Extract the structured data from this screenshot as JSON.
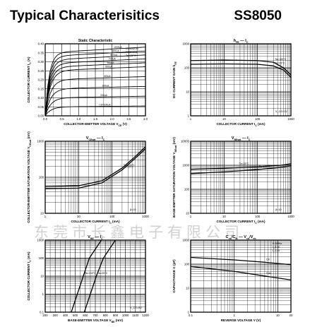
{
  "header": {
    "title": "Typical Characterisitics",
    "part_number": "SS8050"
  },
  "watermark": "东莞市长鑫电子有限公司",
  "chart_data": [
    {
      "type": "line",
      "title": "Static Characteristic",
      "xlabel": "COLLECTOR-EMITTER VOLTAGE",
      "xvar": "V",
      "xsub": "CE",
      "xunit": "(V)",
      "ylabel": "COLLECTOR CURRENT",
      "yvar": "I",
      "ysub": "C",
      "yunit": "(A)",
      "xlim": [
        0,
        3.0
      ],
      "ylim": [
        0,
        0.4
      ],
      "xscale": "linear",
      "yscale": "linear",
      "xticks": [
        "0.0",
        "0.5",
        "1.0",
        "1.5",
        "2.0",
        "2.5",
        "3.0"
      ],
      "yticks": [
        "0.00",
        "0.05",
        "0.10",
        "0.15",
        "0.20",
        "0.25",
        "0.30",
        "0.35",
        "0.40"
      ],
      "annotations": [
        "COMMON",
        "EMITTER",
        "Ta=25°C"
      ],
      "series": [
        {
          "name": "1000uA",
          "sat": 0.35
        },
        {
          "name": "900uA",
          "sat": 0.33
        },
        {
          "name": "800uA",
          "sat": 0.31
        },
        {
          "name": "700uA",
          "sat": 0.29
        },
        {
          "name": "600uA",
          "sat": 0.27
        },
        {
          "name": "500uA",
          "sat": 0.25
        },
        {
          "name": "400uA",
          "sat": 0.2
        },
        {
          "name": "300uA",
          "sat": 0.15
        },
        {
          "name": "200uA",
          "sat": 0.1
        },
        {
          "name": "I_B=100uA",
          "sat": 0.05
        }
      ],
      "label_left": [
        false,
        false,
        false,
        false,
        false,
        false,
        false,
        false,
        false,
        false
      ]
    },
    {
      "type": "line",
      "title_var": "h",
      "title_sub": "FE",
      "title_dash": "— I",
      "title_sub2": "C",
      "xlabel": "COLLECTOR CURRENT",
      "xvar": "I",
      "xsub": "C",
      "xunit": "(mA)",
      "ylabel": "DC CURRENT GAIN",
      "yvar": "h",
      "ysub": "FE",
      "yunit": "",
      "xlim": [
        1,
        1000
      ],
      "ylim": [
        1,
        1000
      ],
      "xscale": "log",
      "yscale": "log",
      "xticks": [
        "1",
        "10",
        "100",
        "1000"
      ],
      "yticks": [
        "1",
        "10",
        "100",
        "1000"
      ],
      "annotations": [
        "V_CE=1V"
      ],
      "series": [
        {
          "name": "Ta=100°C",
          "points": [
            [
              1,
              200
            ],
            [
              10,
              210
            ],
            [
              100,
              200
            ],
            [
              300,
              170
            ],
            [
              600,
              100
            ],
            [
              1000,
              50
            ]
          ]
        },
        {
          "name": "Ta=25°C",
          "points": [
            [
              1,
              140
            ],
            [
              10,
              145
            ],
            [
              100,
              140
            ],
            [
              300,
              120
            ],
            [
              600,
              80
            ],
            [
              1000,
              40
            ]
          ]
        }
      ],
      "label_left": [
        false,
        false
      ]
    },
    {
      "type": "line",
      "title_var": "V",
      "title_sub": "CEsat",
      "title_dash": "— I",
      "title_sub2": "C",
      "xlabel": "COLLECTOR CURRENT",
      "xvar": "I",
      "xsub": "C",
      "xunit": "(mA)",
      "ylabel": "COLLECTOR-EMITTER SATURATION VOLTAGE",
      "yvar": "V",
      "ysub": "CEsat",
      "yunit": "(mV)",
      "xlim": [
        1,
        1000
      ],
      "ylim": [
        10,
        1000
      ],
      "xscale": "log",
      "yscale": "log",
      "xticks": [
        "1",
        "10",
        "100",
        "1000"
      ],
      "yticks": [
        "10",
        "100",
        "1000"
      ],
      "annotations": [
        "β=10"
      ],
      "series": [
        {
          "name": "Ta=100°C",
          "points": [
            [
              1,
              55
            ],
            [
              10,
              58
            ],
            [
              50,
              80
            ],
            [
              200,
              180
            ],
            [
              500,
              380
            ],
            [
              1000,
              700
            ]
          ]
        },
        {
          "name": "Ta=25°C",
          "points": [
            [
              1,
              48
            ],
            [
              10,
              50
            ],
            [
              50,
              70
            ],
            [
              200,
              160
            ],
            [
              500,
              340
            ],
            [
              1000,
              620
            ]
          ]
        }
      ],
      "label_left": [
        false,
        false
      ]
    },
    {
      "type": "line",
      "title_var": "V",
      "title_sub": "BEsat",
      "title_dash": "— I",
      "title_sub2": "C",
      "xlabel": "COLLECTOR CURRENT",
      "xvar": "I",
      "xsub": "C",
      "xunit": "(mA)",
      "ylabel": "BASE-EMITTER SATURATION VOLTAGE",
      "yvar": "V",
      "ysub": "BEsat",
      "yunit": "(mV)",
      "xlim": [
        1,
        1000
      ],
      "ylim": [
        10,
        10000
      ],
      "xscale": "log",
      "yscale": "log",
      "xticks": [
        "1",
        "10",
        "100",
        "1000"
      ],
      "yticks": [
        "10",
        "100",
        "1000",
        "10000"
      ],
      "annotations": [
        "β=10"
      ],
      "series": [
        {
          "name": "Ta=25°C",
          "points": [
            [
              1,
              680
            ],
            [
              10,
              750
            ],
            [
              100,
              860
            ],
            [
              500,
              1000
            ],
            [
              1000,
              1150
            ]
          ]
        },
        {
          "name": "Ta=100°C",
          "points": [
            [
              1,
              450
            ],
            [
              10,
              530
            ],
            [
              100,
              660
            ],
            [
              500,
              820
            ],
            [
              1000,
              950
            ]
          ]
        }
      ],
      "label_left": [
        true,
        false
      ]
    },
    {
      "type": "line",
      "title_var": "V",
      "title_sub": "BE",
      "title_dash": "— I",
      "title_sub2": "C",
      "xlabel": "BASE-EMITTER VOLTAGE",
      "xvar": "V",
      "xsub": "BE",
      "xunit": "(mV)",
      "ylabel": "COLLECTOR CURRENT",
      "yvar": "I",
      "ysub": "C",
      "yunit": "(mA)",
      "xlim": [
        200,
        1200
      ],
      "ylim": [
        0.1,
        1000
      ],
      "xscale": "linear",
      "yscale": "log",
      "xticks": [
        "200",
        "300",
        "400",
        "500",
        "600",
        "700",
        "800",
        "900",
        "1000",
        "1100",
        "1200"
      ],
      "yticks": [
        "0.1",
        "1",
        "10",
        "100",
        "1000"
      ],
      "annotations": [
        "V_CE=5V"
      ],
      "series": [
        {
          "name": "Ta=100°C",
          "points": [
            [
              460,
              0.1
            ],
            [
              520,
              1
            ],
            [
              580,
              10
            ],
            [
              640,
              100
            ],
            [
              760,
              1000
            ]
          ]
        },
        {
          "name": "Ta=25°C",
          "points": [
            [
              590,
              0.1
            ],
            [
              650,
              1
            ],
            [
              710,
              10
            ],
            [
              780,
              100
            ],
            [
              900,
              1000
            ]
          ]
        }
      ],
      "label_left": [
        false,
        false
      ]
    },
    {
      "type": "line",
      "title_var": "C",
      "title_sub": "ob",
      "title_mid": "/C",
      "title_sub_b": "ib",
      "title_dash": "— V",
      "title_sub2": "cb",
      "title_tail": "/V",
      "title_sub3": "eb",
      "xlabel": "REVERSE VOLTAGE",
      "xvar": "V",
      "xsub": "",
      "xunit": "(V)",
      "ylabel": "CAPACITANCE",
      "yvar": "C",
      "ysub": "",
      "yunit": "(pF)",
      "xlim": [
        0.1,
        20
      ],
      "ylim": [
        1,
        1000
      ],
      "xscale": "log",
      "yscale": "log",
      "xticks": [
        "0.1",
        "1",
        "10",
        "20"
      ],
      "yticks": [
        "1",
        "10",
        "100",
        "1000"
      ],
      "annotations": [
        "f=1MHz",
        "I_E=0",
        "I_C=0"
      ],
      "series": [
        {
          "name": "Cib",
          "points": [
            [
              0.1,
              190
            ],
            [
              1,
              150
            ],
            [
              5,
              120
            ],
            [
              20,
              95
            ]
          ]
        },
        {
          "name": "Cob",
          "points": [
            [
              0.1,
              80
            ],
            [
              1,
              50
            ],
            [
              5,
              32
            ],
            [
              20,
              22
            ]
          ]
        }
      ],
      "label_left": [
        false,
        false
      ]
    }
  ]
}
